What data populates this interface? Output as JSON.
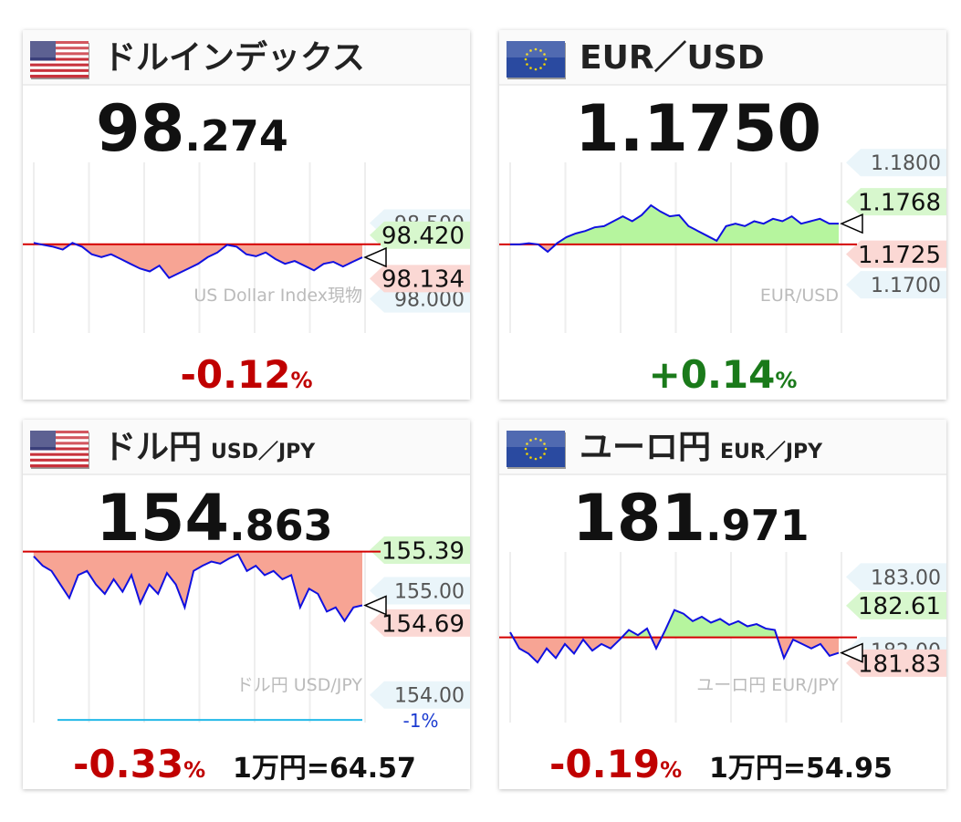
{
  "panels": [
    {
      "flag": "us",
      "title": "ドルインデックス",
      "price_major": "98",
      "price_minor": ".274",
      "watermark": "US Dollar Index現物",
      "change": "-0.12",
      "change_unit": "%",
      "change_color": "#c00000",
      "ylim": [
        97.775,
        98.93
      ],
      "ticks": [
        {
          "value": 98.5,
          "label": "98.500"
        },
        {
          "value": 98.0,
          "label": "98.000"
        }
      ],
      "high": {
        "value": 98.42,
        "label": "98.420"
      },
      "low": {
        "value": 98.134,
        "label": "98.134"
      },
      "reference": 98.36,
      "values": [
        98.369,
        98.356,
        98.344,
        98.325,
        98.369,
        98.344,
        98.294,
        98.275,
        98.294,
        98.263,
        98.231,
        98.2,
        98.181,
        98.219,
        98.138,
        98.169,
        98.2,
        98.231,
        98.275,
        98.306,
        98.356,
        98.344,
        98.294,
        98.281,
        98.306,
        98.263,
        98.231,
        98.25,
        98.219,
        98.188,
        98.231,
        98.244,
        98.213,
        98.244,
        98.274
      ]
    },
    {
      "flag": "eu",
      "title": "EUR／USD",
      "price_major": "1.1750",
      "watermark": "EUR/USD",
      "change": "+0.14",
      "change_unit": "%",
      "change_color": "#1a7a1a",
      "ylim": [
        1.16605,
        1.18039
      ],
      "ticks": [
        {
          "value": 1.18,
          "label": "1.1800"
        },
        {
          "value": 1.17,
          "label": "1.1700"
        }
      ],
      "high": {
        "value": 1.1768,
        "label": "1.1768"
      },
      "low": {
        "value": 1.1725,
        "label": "1.1725"
      },
      "reference": 1.1733,
      "values": [
        1.1733,
        1.1733,
        1.1734,
        1.1733,
        1.1727,
        1.1734,
        1.1739,
        1.1742,
        1.1744,
        1.1747,
        1.1748,
        1.1752,
        1.1756,
        1.1752,
        1.1757,
        1.1765,
        1.176,
        1.1756,
        1.1757,
        1.1748,
        1.1744,
        1.174,
        1.1736,
        1.1748,
        1.175,
        1.1748,
        1.1752,
        1.175,
        1.1754,
        1.1752,
        1.1756,
        1.175,
        1.1752,
        1.1754,
        1.175,
        1.175
      ]
    },
    {
      "flag": "us",
      "title": "ドル円",
      "subtitle": "USD／JPY",
      "price_major": "154",
      "price_minor": ".863",
      "watermark": "ドル円 USD/JPY",
      "change": "-0.33",
      "change_unit": "%",
      "change_color": "#c00000",
      "conversion": "1万円=64.57",
      "ylim": [
        153.735,
        155.416
      ],
      "ticks": [
        {
          "value": 155.0,
          "label": "155.00"
        },
        {
          "value": 154.0,
          "label": "154.00"
        }
      ],
      "high": {
        "value": 155.39,
        "label": "155.39"
      },
      "low": {
        "value": 154.69,
        "label": "154.69"
      },
      "reference": 155.376,
      "limit": {
        "value": 153.76,
        "label": "-1%"
      },
      "values": [
        155.33,
        155.24,
        155.19,
        155.06,
        154.93,
        155.15,
        155.19,
        155.06,
        154.97,
        155.11,
        154.99,
        155.15,
        154.88,
        155.06,
        154.97,
        155.17,
        155.06,
        154.84,
        155.19,
        155.24,
        155.28,
        155.26,
        155.31,
        155.35,
        155.19,
        155.24,
        155.15,
        155.19,
        155.11,
        155.15,
        154.84,
        155.02,
        154.97,
        154.8,
        154.84,
        154.71,
        154.84,
        154.86
      ]
    },
    {
      "flag": "eu",
      "title": "ユーロ円",
      "subtitle": "EUR／JPY",
      "price_major": "181",
      "price_minor": ".971",
      "watermark": "ユーロ円 EUR/JPY",
      "change": "-0.19",
      "change_unit": "%",
      "change_color": "#c00000",
      "conversion": "1万円=54.95",
      "ylim": [
        181.025,
        183.4
      ],
      "ticks": [
        {
          "value": 183.0,
          "label": "183.00"
        },
        {
          "value": 182.0,
          "label": "182.00"
        }
      ],
      "high": {
        "value": 182.61,
        "label": "182.61"
      },
      "low": {
        "value": 181.83,
        "label": "181.83"
      },
      "reference": 182.18,
      "values": [
        182.25,
        182.03,
        181.96,
        181.84,
        182.03,
        181.9,
        182.09,
        181.96,
        182.15,
        182.0,
        182.09,
        182.03,
        182.15,
        182.28,
        182.21,
        182.3,
        182.03,
        182.28,
        182.55,
        182.5,
        182.4,
        182.46,
        182.38,
        182.43,
        182.35,
        182.4,
        182.33,
        182.36,
        182.3,
        182.28,
        181.9,
        182.15,
        182.09,
        182.03,
        182.09,
        181.93,
        181.97
      ]
    }
  ]
}
